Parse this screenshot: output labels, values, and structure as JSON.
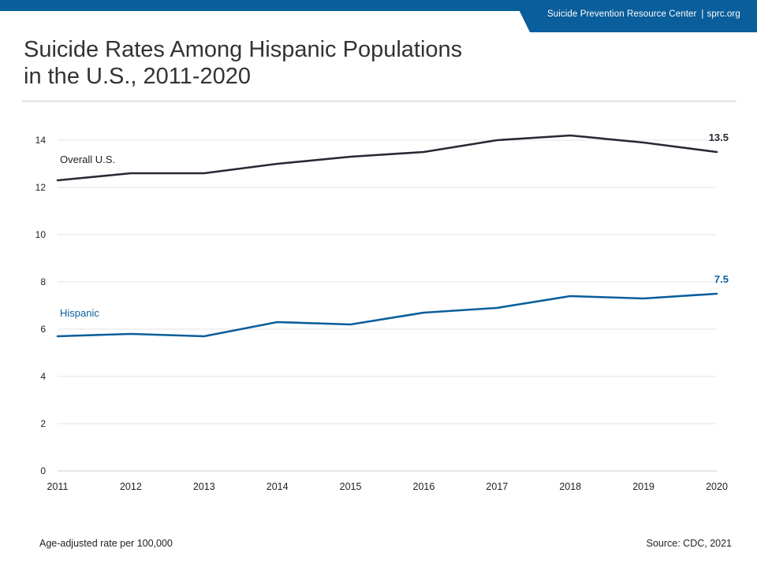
{
  "header": {
    "brand_name": "Suicide Prevention Resource Center",
    "brand_url": "sprc.org",
    "separator": "|",
    "color": "#0a5e9c"
  },
  "title_line1": "Suicide Rates Among Hispanic Populations",
  "title_line2": "in the U.S., 2011-2020",
  "footnote": "Age-adjusted rate per 100,000",
  "source": "Source: CDC, 2021",
  "chart_data": {
    "type": "line",
    "x": [
      2011,
      2012,
      2013,
      2014,
      2015,
      2016,
      2017,
      2018,
      2019,
      2020
    ],
    "ylim": [
      0,
      14
    ],
    "yticks": [
      0,
      2,
      4,
      6,
      8,
      10,
      12,
      14
    ],
    "grid": true,
    "legend": "inline labels",
    "series": [
      {
        "name": "Overall U.S.",
        "color": "#252a33",
        "values": [
          12.3,
          12.6,
          12.6,
          13.0,
          13.3,
          13.5,
          14.0,
          14.2,
          13.9,
          13.5
        ],
        "end_label": "13.5"
      },
      {
        "name": "Hispanic",
        "color": "#0a5e9c",
        "values": [
          5.7,
          5.8,
          5.7,
          6.3,
          6.2,
          6.7,
          6.9,
          7.4,
          7.3,
          7.5
        ],
        "end_label": "7.5"
      }
    ]
  }
}
